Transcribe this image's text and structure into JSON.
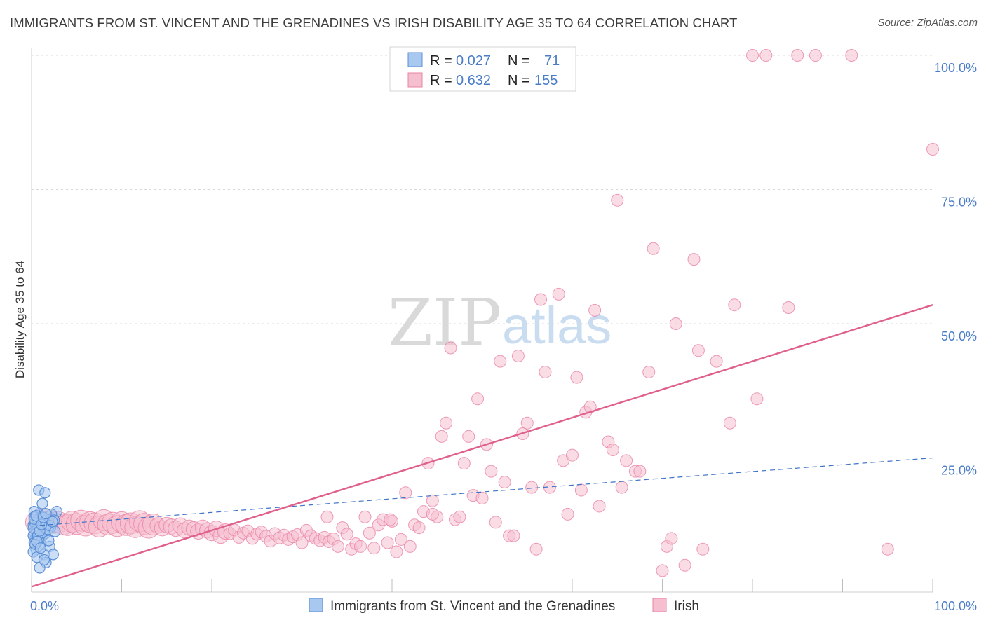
{
  "title": "IMMIGRANTS FROM ST. VINCENT AND THE GRENADINES VS IRISH DISABILITY AGE 35 TO 64 CORRELATION CHART",
  "source": "Source: ZipAtlas.com",
  "watermark": {
    "part1": "ZIP",
    "part2": "atlas"
  },
  "colors": {
    "blue_fill": "#a9c8f0",
    "blue_stroke": "#5b8ed6",
    "blue_line": "#3f74c8",
    "pink_fill": "#f6bfd0",
    "pink_stroke": "#e983a5",
    "pink_line": "#e0608c",
    "tick_text": "#4a7cc9",
    "grid": "#d8d8d8"
  },
  "legend_box": {
    "rows": [
      {
        "r_label": "R =",
        "r_value": "0.027",
        "n_label": "N =",
        "n_value": "71",
        "color": "blue"
      },
      {
        "r_label": "R =",
        "r_value": "0.632",
        "n_label": "N =",
        "n_value": "155",
        "color": "pink"
      }
    ]
  },
  "bottom_legend": [
    {
      "label": "Immigrants from St. Vincent and the Grenadines",
      "color": "blue"
    },
    {
      "label": "Irish",
      "color": "pink"
    }
  ],
  "chart_data": {
    "type": "scatter",
    "title": "IMMIGRANTS FROM ST. VINCENT AND THE GRENADINES VS IRISH DISABILITY AGE 35 TO 64 CORRELATION CHART",
    "xlabel": "",
    "ylabel": "Disability Age 35 to 64",
    "xlim": [
      0,
      100
    ],
    "ylim": [
      0,
      100
    ],
    "x_tick_labels": [
      {
        "value": 0,
        "label": "0.0%"
      },
      {
        "value": 100,
        "label": "100.0%"
      }
    ],
    "y_tick_labels": [
      {
        "value": 25,
        "label": "25.0%"
      },
      {
        "value": 50,
        "label": "50.0%"
      },
      {
        "value": 75,
        "label": "75.0%"
      },
      {
        "value": 100,
        "label": "100.0%"
      }
    ],
    "grid": true,
    "legend_placement": "top-center",
    "series": [
      {
        "name": "Immigrants from St. Vincent and the Grenadines",
        "color": "blue",
        "stats": {
          "R": 0.027,
          "N": 71
        },
        "trend": {
          "x0": 0,
          "y0": 12.3,
          "x1": 100,
          "y1": 25.0,
          "style": "dashed"
        },
        "points": [
          [
            0.2,
            12.5
          ],
          [
            0.4,
            13.8
          ],
          [
            0.3,
            11.2
          ],
          [
            0.6,
            10.8
          ],
          [
            0.5,
            9.5
          ],
          [
            0.8,
            14.5
          ],
          [
            0.3,
            15.0
          ],
          [
            0.7,
            12.0
          ],
          [
            0.4,
            10.0
          ],
          [
            0.9,
            13.2
          ],
          [
            1.1,
            11.8
          ],
          [
            0.5,
            8.0
          ],
          [
            0.2,
            7.5
          ],
          [
            1.2,
            16.5
          ],
          [
            0.8,
            19.0
          ],
          [
            1.5,
            18.5
          ],
          [
            1.0,
            9.0
          ],
          [
            1.3,
            12.8
          ],
          [
            0.6,
            6.5
          ],
          [
            1.4,
            7.0
          ],
          [
            1.6,
            5.5
          ],
          [
            0.9,
            4.5
          ],
          [
            2.0,
            8.5
          ],
          [
            2.4,
            7.0
          ],
          [
            2.8,
            15.0
          ],
          [
            2.2,
            14.5
          ],
          [
            1.8,
            13.5
          ],
          [
            0.3,
            14.0
          ],
          [
            0.5,
            12.0
          ],
          [
            0.7,
            11.5
          ],
          [
            1.0,
            13.8
          ],
          [
            1.2,
            10.5
          ],
          [
            0.4,
            9.8
          ],
          [
            0.6,
            13.0
          ],
          [
            0.8,
            12.2
          ],
          [
            1.1,
            14.0
          ],
          [
            1.3,
            11.0
          ],
          [
            1.6,
            12.5
          ],
          [
            1.9,
            13.0
          ],
          [
            2.1,
            12.0
          ],
          [
            0.2,
            10.5
          ],
          [
            0.3,
            9.2
          ],
          [
            0.5,
            11.8
          ],
          [
            0.7,
            13.5
          ],
          [
            0.9,
            10.2
          ],
          [
            1.0,
            12.9
          ],
          [
            1.2,
            13.3
          ],
          [
            1.4,
            11.6
          ],
          [
            1.7,
            12.7
          ],
          [
            2.5,
            13.4
          ],
          [
            0.4,
            12.9
          ],
          [
            0.6,
            11.1
          ],
          [
            0.8,
            9.9
          ],
          [
            0.2,
            11.9
          ],
          [
            1.5,
            10.9
          ],
          [
            1.8,
            11.7
          ],
          [
            2.0,
            12.4
          ],
          [
            2.3,
            13.1
          ],
          [
            0.3,
            13.6
          ],
          [
            0.5,
            14.2
          ],
          [
            0.7,
            10.6
          ],
          [
            0.9,
            11.4
          ],
          [
            1.1,
            12.6
          ],
          [
            1.3,
            13.9
          ],
          [
            1.6,
            14.6
          ],
          [
            0.4,
            8.9
          ],
          [
            0.6,
            9.4
          ],
          [
            1.0,
            8.2
          ],
          [
            1.4,
            6.0
          ],
          [
            1.9,
            9.6
          ],
          [
            2.6,
            11.3
          ]
        ]
      },
      {
        "name": "Irish",
        "color": "pink",
        "stats": {
          "R": 0.632,
          "N": 155
        },
        "trend": {
          "x0": 0,
          "y0": 1.0,
          "x1": 100,
          "y1": 53.5,
          "style": "solid"
        },
        "points": [
          [
            0.5,
            13.0
          ],
          [
            1.0,
            12.8
          ],
          [
            1.5,
            13.5
          ],
          [
            2.0,
            13.2
          ],
          [
            2.5,
            12.9
          ],
          [
            3.0,
            13.0
          ],
          [
            3.5,
            12.6
          ],
          [
            4.0,
            12.5
          ],
          [
            4.5,
            13.1
          ],
          [
            5.0,
            12.7
          ],
          [
            5.5,
            13.3
          ],
          [
            6.0,
            12.4
          ],
          [
            6.5,
            13.0
          ],
          [
            7.0,
            12.8
          ],
          [
            7.5,
            12.2
          ],
          [
            8.0,
            13.4
          ],
          [
            8.5,
            12.6
          ],
          [
            9.0,
            12.9
          ],
          [
            9.5,
            12.3
          ],
          [
            10.0,
            13.0
          ],
          [
            10.5,
            12.5
          ],
          [
            11.0,
            12.8
          ],
          [
            11.5,
            12.1
          ],
          [
            12.0,
            13.2
          ],
          [
            12.5,
            12.7
          ],
          [
            13.0,
            12.0
          ],
          [
            13.5,
            12.6
          ],
          [
            14.0,
            12.4
          ],
          [
            14.5,
            11.9
          ],
          [
            15.0,
            12.5
          ],
          [
            15.5,
            12.2
          ],
          [
            16.0,
            11.8
          ],
          [
            16.5,
            12.4
          ],
          [
            17.0,
            11.5
          ],
          [
            17.5,
            12.0
          ],
          [
            18.0,
            11.7
          ],
          [
            18.5,
            11.3
          ],
          [
            19.0,
            12.0
          ],
          [
            19.5,
            11.5
          ],
          [
            20.0,
            11.0
          ],
          [
            20.5,
            11.8
          ],
          [
            21.0,
            10.5
          ],
          [
            21.5,
            11.3
          ],
          [
            22.0,
            10.9
          ],
          [
            22.5,
            11.6
          ],
          [
            23.0,
            10.2
          ],
          [
            23.5,
            11.0
          ],
          [
            24.0,
            11.4
          ],
          [
            24.5,
            10.0
          ],
          [
            25.0,
            10.8
          ],
          [
            25.5,
            11.2
          ],
          [
            26.0,
            10.4
          ],
          [
            26.5,
            9.5
          ],
          [
            27.0,
            10.9
          ],
          [
            27.5,
            10.1
          ],
          [
            28.0,
            10.6
          ],
          [
            28.5,
            9.8
          ],
          [
            29.0,
            10.3
          ],
          [
            29.5,
            10.7
          ],
          [
            30.0,
            9.2
          ],
          [
            30.5,
            11.5
          ],
          [
            31.0,
            10.5
          ],
          [
            31.5,
            10.0
          ],
          [
            32.0,
            9.6
          ],
          [
            32.5,
            10.2
          ],
          [
            33.0,
            9.4
          ],
          [
            33.5,
            9.9
          ],
          [
            34.0,
            8.5
          ],
          [
            34.5,
            12.0
          ],
          [
            35.0,
            10.8
          ],
          [
            35.5,
            8.0
          ],
          [
            36.0,
            9.0
          ],
          [
            36.5,
            8.5
          ],
          [
            37.0,
            14.0
          ],
          [
            37.5,
            11.0
          ],
          [
            38.0,
            8.2
          ],
          [
            38.5,
            12.5
          ],
          [
            39.0,
            13.5
          ],
          [
            39.5,
            9.2
          ],
          [
            40.0,
            13.2
          ],
          [
            40.5,
            7.5
          ],
          [
            41.0,
            9.8
          ],
          [
            41.5,
            18.5
          ],
          [
            42.0,
            8.5
          ],
          [
            42.5,
            12.5
          ],
          [
            43.0,
            12.0
          ],
          [
            43.5,
            15.0
          ],
          [
            44.0,
            24.0
          ],
          [
            44.5,
            17.0
          ],
          [
            45.0,
            14.0
          ],
          [
            45.5,
            29.0
          ],
          [
            46.0,
            31.5
          ],
          [
            46.5,
            45.5
          ],
          [
            47.0,
            13.5
          ],
          [
            47.5,
            14.0
          ],
          [
            48.0,
            24.0
          ],
          [
            48.5,
            29.0
          ],
          [
            49.0,
            18.0
          ],
          [
            49.5,
            36.0
          ],
          [
            50.0,
            17.5
          ],
          [
            50.5,
            27.5
          ],
          [
            51.0,
            22.5
          ],
          [
            51.5,
            13.0
          ],
          [
            52.0,
            43.0
          ],
          [
            52.5,
            20.5
          ],
          [
            53.0,
            10.5
          ],
          [
            53.5,
            10.5
          ],
          [
            54.0,
            44.0
          ],
          [
            54.5,
            29.5
          ],
          [
            55.0,
            31.5
          ],
          [
            55.5,
            19.5
          ],
          [
            56.0,
            8.0
          ],
          [
            56.5,
            54.5
          ],
          [
            57.0,
            41.0
          ],
          [
            57.5,
            19.5
          ],
          [
            58.5,
            55.5
          ],
          [
            59.0,
            24.5
          ],
          [
            59.5,
            14.5
          ],
          [
            60.0,
            25.5
          ],
          [
            60.5,
            40.0
          ],
          [
            61.0,
            19.0
          ],
          [
            61.5,
            33.5
          ],
          [
            62.0,
            34.5
          ],
          [
            62.5,
            52.5
          ],
          [
            63.0,
            16.0
          ],
          [
            64.0,
            28.0
          ],
          [
            64.5,
            26.5
          ],
          [
            65.0,
            73.0
          ],
          [
            65.5,
            19.5
          ],
          [
            66.0,
            24.5
          ],
          [
            67.0,
            22.5
          ],
          [
            67.5,
            22.5
          ],
          [
            68.5,
            41.0
          ],
          [
            69.0,
            64.0
          ],
          [
            70.0,
            4.0
          ],
          [
            70.5,
            8.5
          ],
          [
            71.0,
            10.0
          ],
          [
            71.5,
            50.0
          ],
          [
            72.5,
            5.0
          ],
          [
            73.5,
            62.0
          ],
          [
            74.0,
            45.0
          ],
          [
            74.5,
            8.0
          ],
          [
            76.0,
            43.0
          ],
          [
            77.5,
            31.5
          ],
          [
            78.0,
            53.5
          ],
          [
            80.0,
            100.0
          ],
          [
            80.5,
            36.0
          ],
          [
            81.5,
            100.0
          ],
          [
            84.0,
            53.0
          ],
          [
            85.0,
            100.0
          ],
          [
            87.0,
            100.0
          ],
          [
            91.0,
            100.0
          ],
          [
            95.0,
            8.0
          ],
          [
            100.0,
            82.5
          ],
          [
            44.5,
            14.5
          ],
          [
            32.8,
            14.0
          ],
          [
            39.8,
            13.5
          ]
        ]
      }
    ]
  }
}
